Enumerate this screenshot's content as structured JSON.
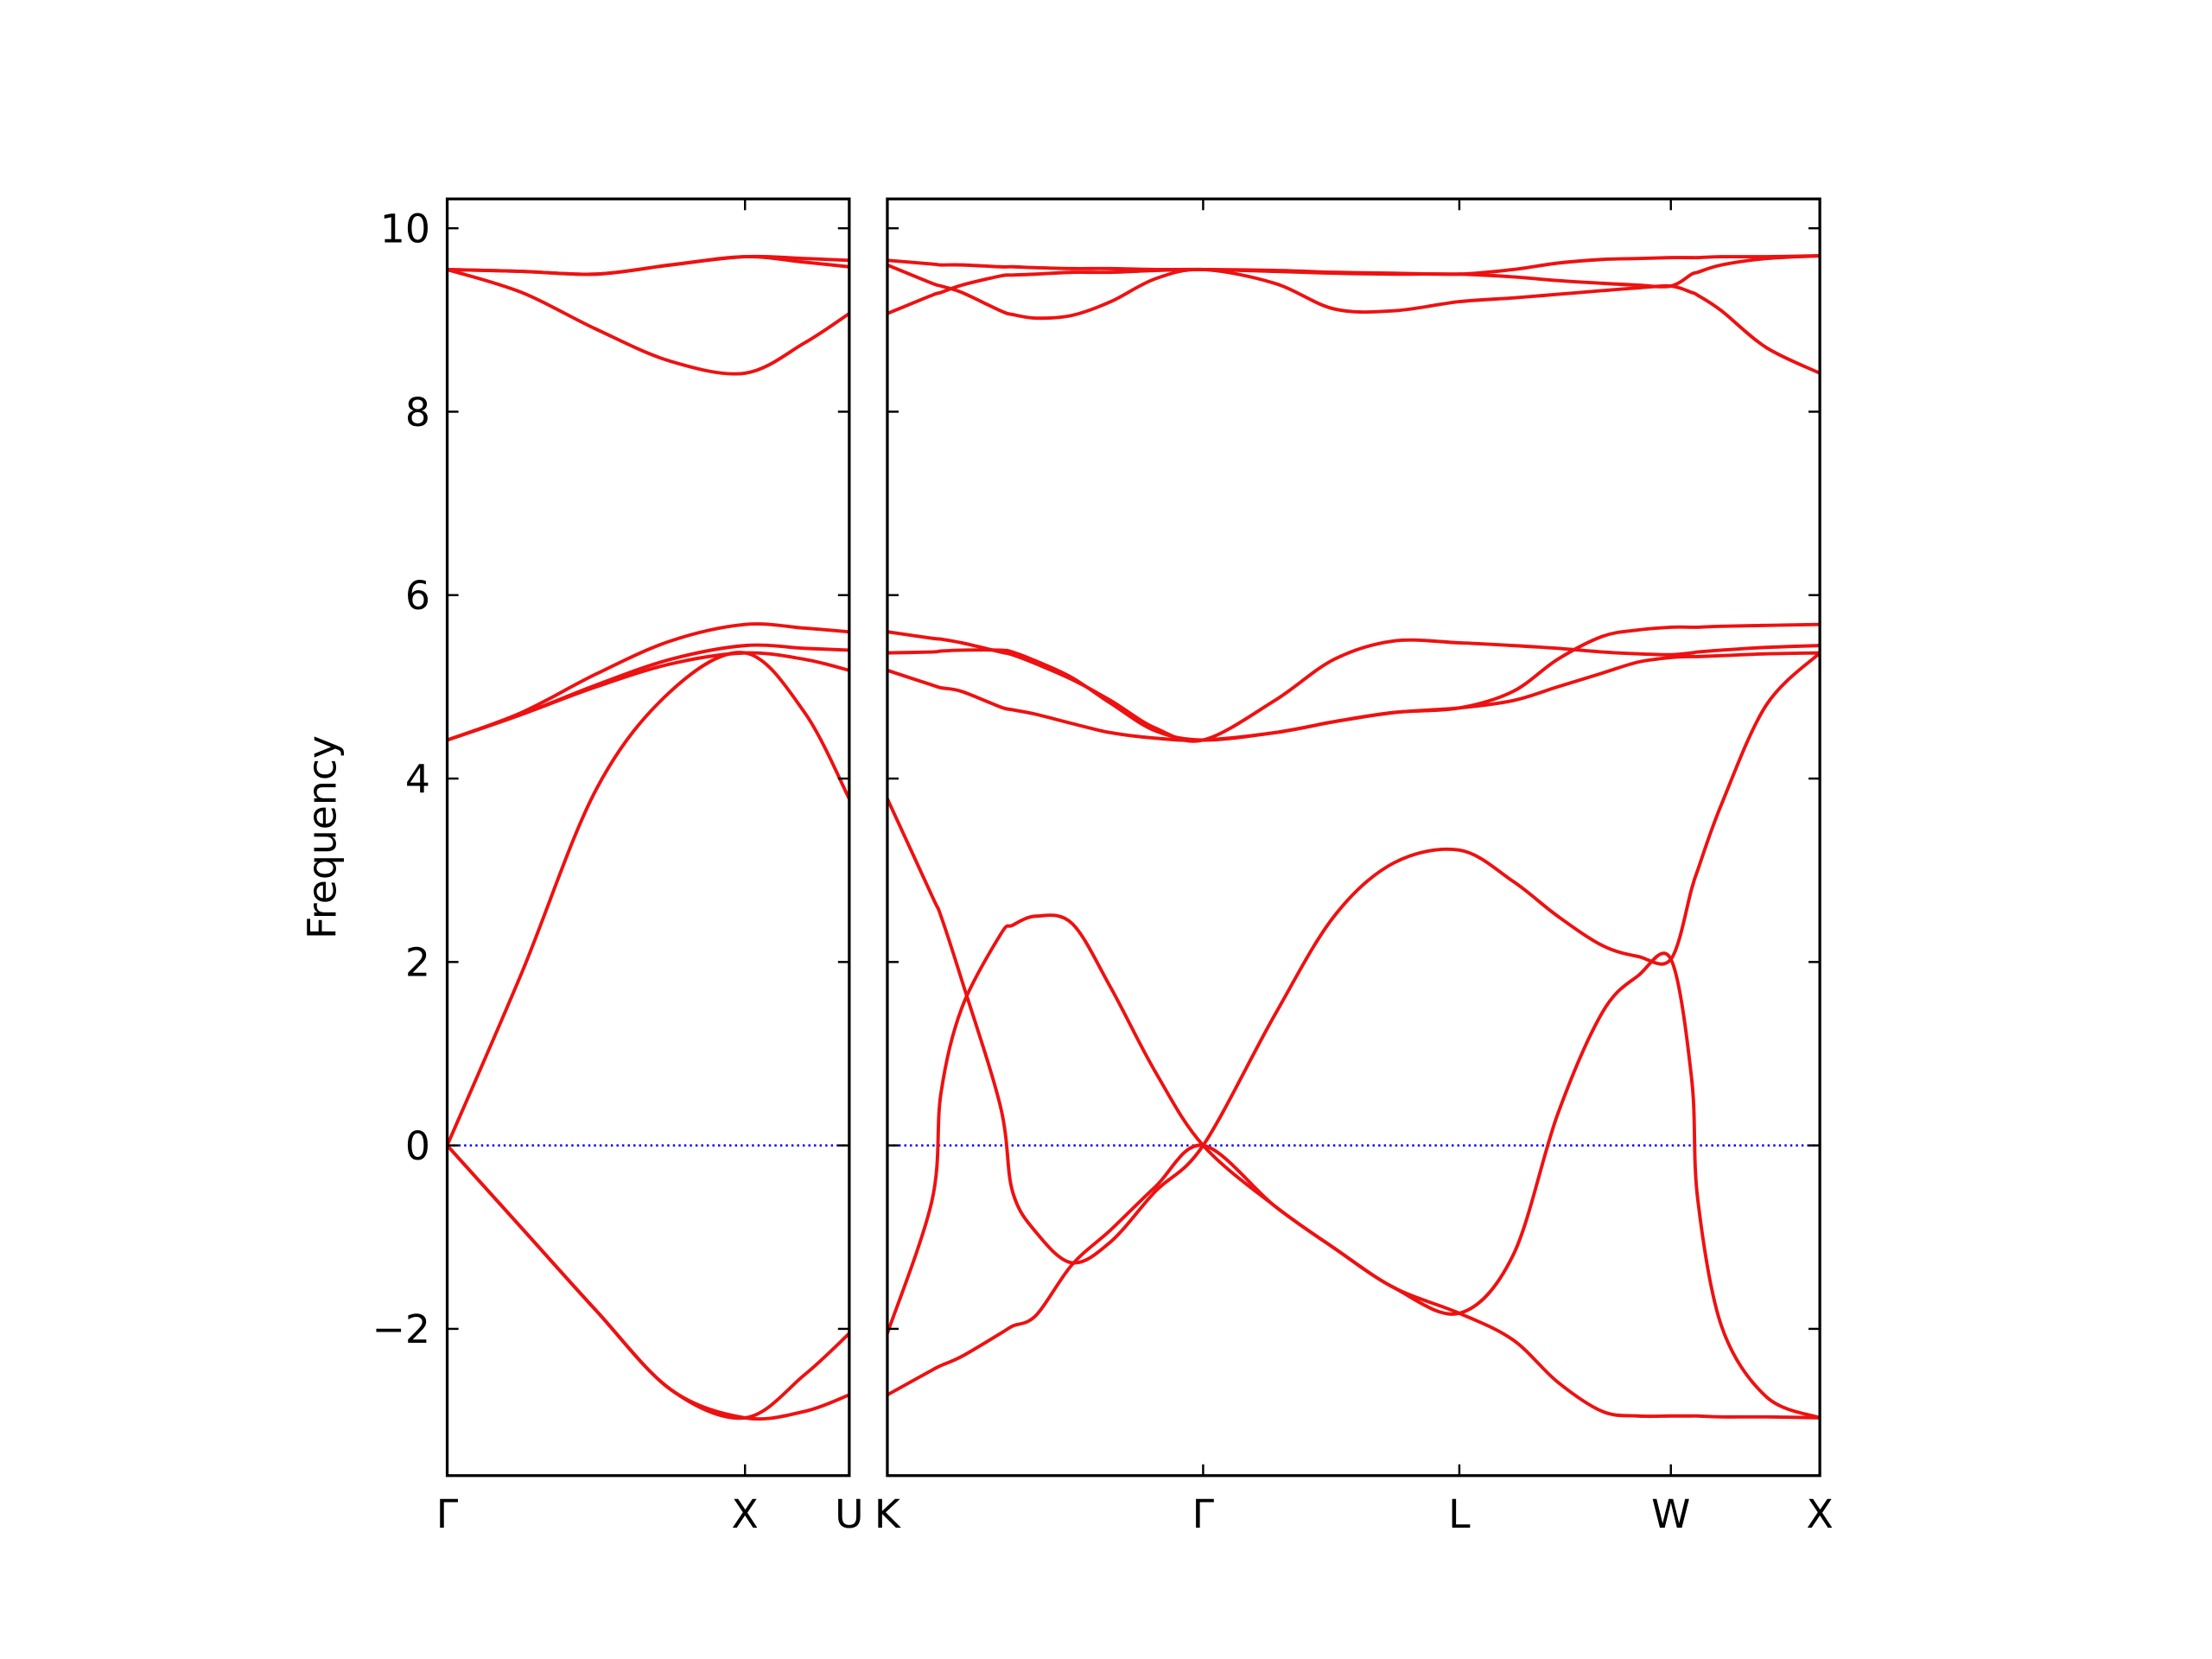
{
  "chart_data": [
    {
      "type": "line",
      "ylabel": "Frequency",
      "color": "#ee1111",
      "x": [
        0,
        0.25,
        0.5,
        0.75,
        1,
        1.2,
        1.35
      ],
      "xlim": [
        0,
        1.35
      ],
      "xticks": [
        {
          "value": 0,
          "label": "Γ"
        },
        {
          "value": 1,
          "label": "X"
        },
        {
          "value": 1.35,
          "label": "U"
        }
      ],
      "ylim": [
        -3.6,
        10.32
      ],
      "yticks": [
        {
          "value": -2,
          "label": "−2"
        },
        0,
        2,
        4,
        6,
        8,
        10
      ],
      "show_ytick_labels": true,
      "hline": 0,
      "hline_color": "#0000ff",
      "series": [
        {
          "values": [
            0,
            1.88,
            3.88,
            4.95,
            5.37,
            4.72,
            3.78
          ]
        },
        {
          "values": [
            0,
            -0.9,
            -1.8,
            -2.66,
            -2.97,
            -2.5,
            -2.05
          ]
        },
        {
          "values": [
            0,
            -0.9,
            -1.8,
            -2.66,
            -2.97,
            -2.9,
            -2.72
          ]
        },
        {
          "values": [
            4.42,
            4.72,
            5.14,
            5.5,
            5.68,
            5.64,
            5.6
          ]
        },
        {
          "values": [
            4.42,
            4.7,
            5.02,
            5.3,
            5.45,
            5.42,
            5.4
          ]
        },
        {
          "values": [
            4.42,
            4.7,
            5.0,
            5.25,
            5.37,
            5.3,
            5.18
          ]
        },
        {
          "values": [
            9.55,
            9.53,
            9.5,
            9.6,
            9.69,
            9.67,
            9.65
          ]
        },
        {
          "values": [
            9.55,
            9.53,
            9.5,
            9.6,
            9.69,
            9.63,
            9.58
          ]
        },
        {
          "values": [
            9.55,
            9.3,
            8.9,
            8.55,
            8.42,
            8.75,
            9.07
          ]
        }
      ]
    },
    {
      "type": "line",
      "color": "#ee1111",
      "x": [
        0,
        0.15,
        0.18,
        0.25,
        0.38,
        0.42,
        0.5,
        0.62,
        0.75,
        0.9,
        1.06,
        1.3,
        1.5,
        1.7,
        1.92,
        2.1,
        2.25,
        2.4,
        2.52,
        2.63,
        2.7,
        2.72,
        2.8,
        2.95,
        3.13
      ],
      "xlim": [
        0,
        3.13
      ],
      "xticks": [
        {
          "value": 0,
          "label": "K"
        },
        {
          "value": 1.06,
          "label": "Γ"
        },
        {
          "value": 1.92,
          "label": "L"
        },
        {
          "value": 2.63,
          "label": "W"
        },
        {
          "value": 3.13,
          "label": "X"
        }
      ],
      "ylim": [
        -3.6,
        10.32
      ],
      "yticks": [
        -2,
        0,
        2,
        4,
        6,
        8,
        10
      ],
      "show_ytick_labels": false,
      "hline": 0,
      "hline_color": "#0000ff",
      "series": [
        {
          "values": [
            3.78,
            2.72,
            2.5,
            1.8,
            0.42,
            -0.5,
            -0.95,
            -1.28,
            -1.05,
            -0.5,
            0,
            1.42,
            2.5,
            3.08,
            3.22,
            2.88,
            2.5,
            2.18,
            2.06,
            2.03,
            2.8,
            3.0,
            3.72,
            4.8,
            5.37
          ]
        },
        {
          "values": [
            -2.05,
            -0.6,
            0.57,
            1.5,
            2.3,
            2.4,
            2.5,
            2.42,
            1.72,
            0.8,
            0,
            -0.66,
            -1.12,
            -1.55,
            -1.83,
            -1.2,
            0.34,
            1.45,
            1.85,
            2.03,
            0.72,
            -0.58,
            -1.97,
            -2.74,
            -2.97
          ]
        },
        {
          "values": [
            -2.72,
            -2.45,
            -2.4,
            -2.3,
            -2.05,
            -1.97,
            -1.85,
            -1.3,
            -0.92,
            -0.45,
            0,
            -0.66,
            -1.12,
            -1.55,
            -1.83,
            -2.12,
            -2.58,
            -2.9,
            -2.95,
            -2.95,
            -2.95,
            -2.95,
            -2.96,
            -2.96,
            -2.97
          ]
        },
        {
          "values": [
            5.6,
            5.53,
            5.52,
            5.48,
            5.38,
            5.35,
            5.25,
            5.08,
            4.85,
            4.55,
            4.42,
            4.85,
            5.3,
            5.5,
            5.48,
            5.45,
            5.42,
            5.38,
            5.36,
            5.35,
            5.37,
            5.38,
            5.4,
            5.43,
            5.45
          ]
        },
        {
          "values": [
            5.37,
            5.38,
            5.39,
            5.4,
            5.4,
            5.38,
            5.28,
            5.1,
            4.82,
            4.52,
            4.42,
            4.5,
            4.62,
            4.72,
            4.77,
            4.95,
            5.3,
            5.55,
            5.62,
            5.65,
            5.65,
            5.65,
            5.66,
            5.67,
            5.68
          ]
        },
        {
          "values": [
            5.18,
            5.02,
            4.99,
            4.95,
            4.78,
            4.75,
            4.7,
            4.6,
            4.5,
            4.44,
            4.42,
            4.5,
            4.62,
            4.72,
            4.77,
            4.85,
            5.0,
            5.15,
            5.27,
            5.32,
            5.33,
            5.33,
            5.34,
            5.36,
            5.37
          ]
        },
        {
          "values": [
            9.65,
            9.61,
            9.6,
            9.6,
            9.58,
            9.58,
            9.57,
            9.56,
            9.56,
            9.55,
            9.55,
            9.54,
            9.52,
            9.51,
            9.5,
            9.55,
            9.62,
            9.66,
            9.67,
            9.68,
            9.68,
            9.68,
            9.69,
            9.69,
            9.7
          ]
        },
        {
          "values": [
            9.6,
            9.4,
            9.37,
            9.3,
            9.1,
            9.06,
            9.02,
            9.05,
            9.2,
            9.45,
            9.55,
            9.4,
            9.12,
            9.1,
            9.2,
            9.24,
            9.28,
            9.32,
            9.35,
            9.37,
            9.3,
            9.27,
            9.1,
            8.7,
            8.42
          ]
        },
        {
          "values": [
            9.07,
            9.27,
            9.3,
            9.38,
            9.48,
            9.49,
            9.5,
            9.52,
            9.52,
            9.54,
            9.55,
            9.53,
            9.51,
            9.5,
            9.5,
            9.47,
            9.43,
            9.4,
            9.38,
            9.37,
            9.5,
            9.52,
            9.6,
            9.67,
            9.7
          ]
        }
      ]
    }
  ]
}
